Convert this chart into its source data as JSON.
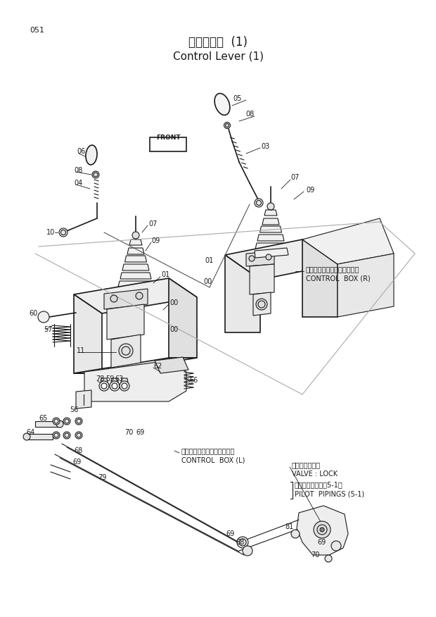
{
  "title_japanese": "操作レバー  (1)",
  "title_english": "Control Lever (1)",
  "page_number": "051",
  "bg": "#ffffff",
  "lc": "#1a1a1a",
  "title_fs": 12,
  "label_fs": 7,
  "ann_fs": 7.5,
  "annotations": {
    "control_box_right_jp": "コントロールボックス（右）",
    "control_box_right_en": "CONTROL  BOX (R)",
    "control_box_left_jp": "コントロールボックス（左）",
    "control_box_left_en": "CONTROL  BOX (L)",
    "valve_lock_jp": "バルブ；ロック",
    "valve_lock_en": "VALVE : LOCK",
    "pilot_jp": "パイロット配管（5-1）",
    "pilot_en": "PILOT  PIPINGS (5-1)"
  }
}
